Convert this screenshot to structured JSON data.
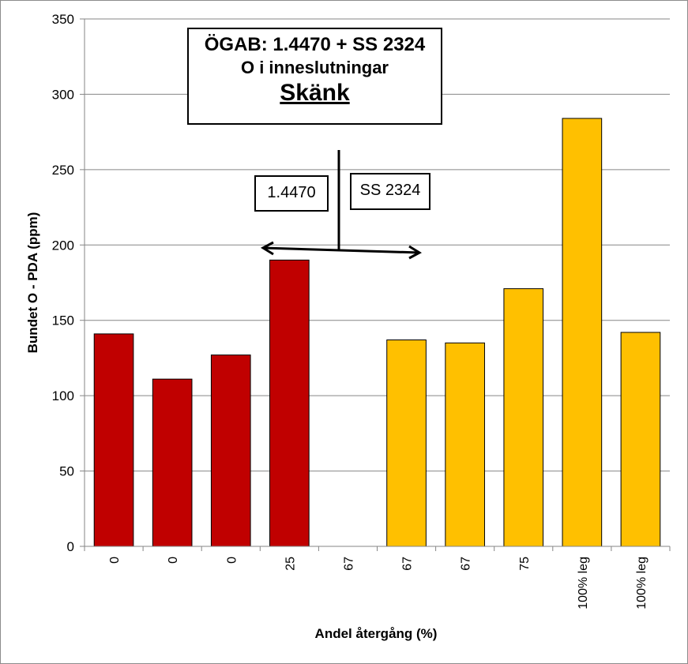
{
  "chart_data": {
    "type": "bar",
    "categories": [
      "0",
      "0",
      "0",
      "25",
      "67",
      "67",
      "67",
      "75",
      "100% leg",
      "100% leg"
    ],
    "values": [
      141,
      111,
      127,
      190,
      null,
      137,
      135,
      171,
      284,
      142
    ],
    "bar_colors": [
      "#c00000",
      "#c00000",
      "#c00000",
      "#c00000",
      null,
      "#ffc000",
      "#ffc000",
      "#ffc000",
      "#ffc000",
      "#ffc000"
    ],
    "xlabel": "Andel återgång (%)",
    "ylabel": "Bundet O - PDA (ppm)",
    "ylim": [
      0,
      350
    ],
    "yticks": [
      0,
      50,
      100,
      150,
      200,
      250,
      300,
      350
    ],
    "grid": true,
    "annotations": {
      "title_line1": "ÖGAB: 1.4470 + SS 2324",
      "title_line2": "O i inneslutningar",
      "title_line3": "Skänk",
      "left_label": "1.4470",
      "right_label": "SS 2324"
    }
  },
  "colors": {
    "steel_1_4470": "#c00000",
    "steel_ss_2324": "#ffc000",
    "grid": "#868686"
  }
}
